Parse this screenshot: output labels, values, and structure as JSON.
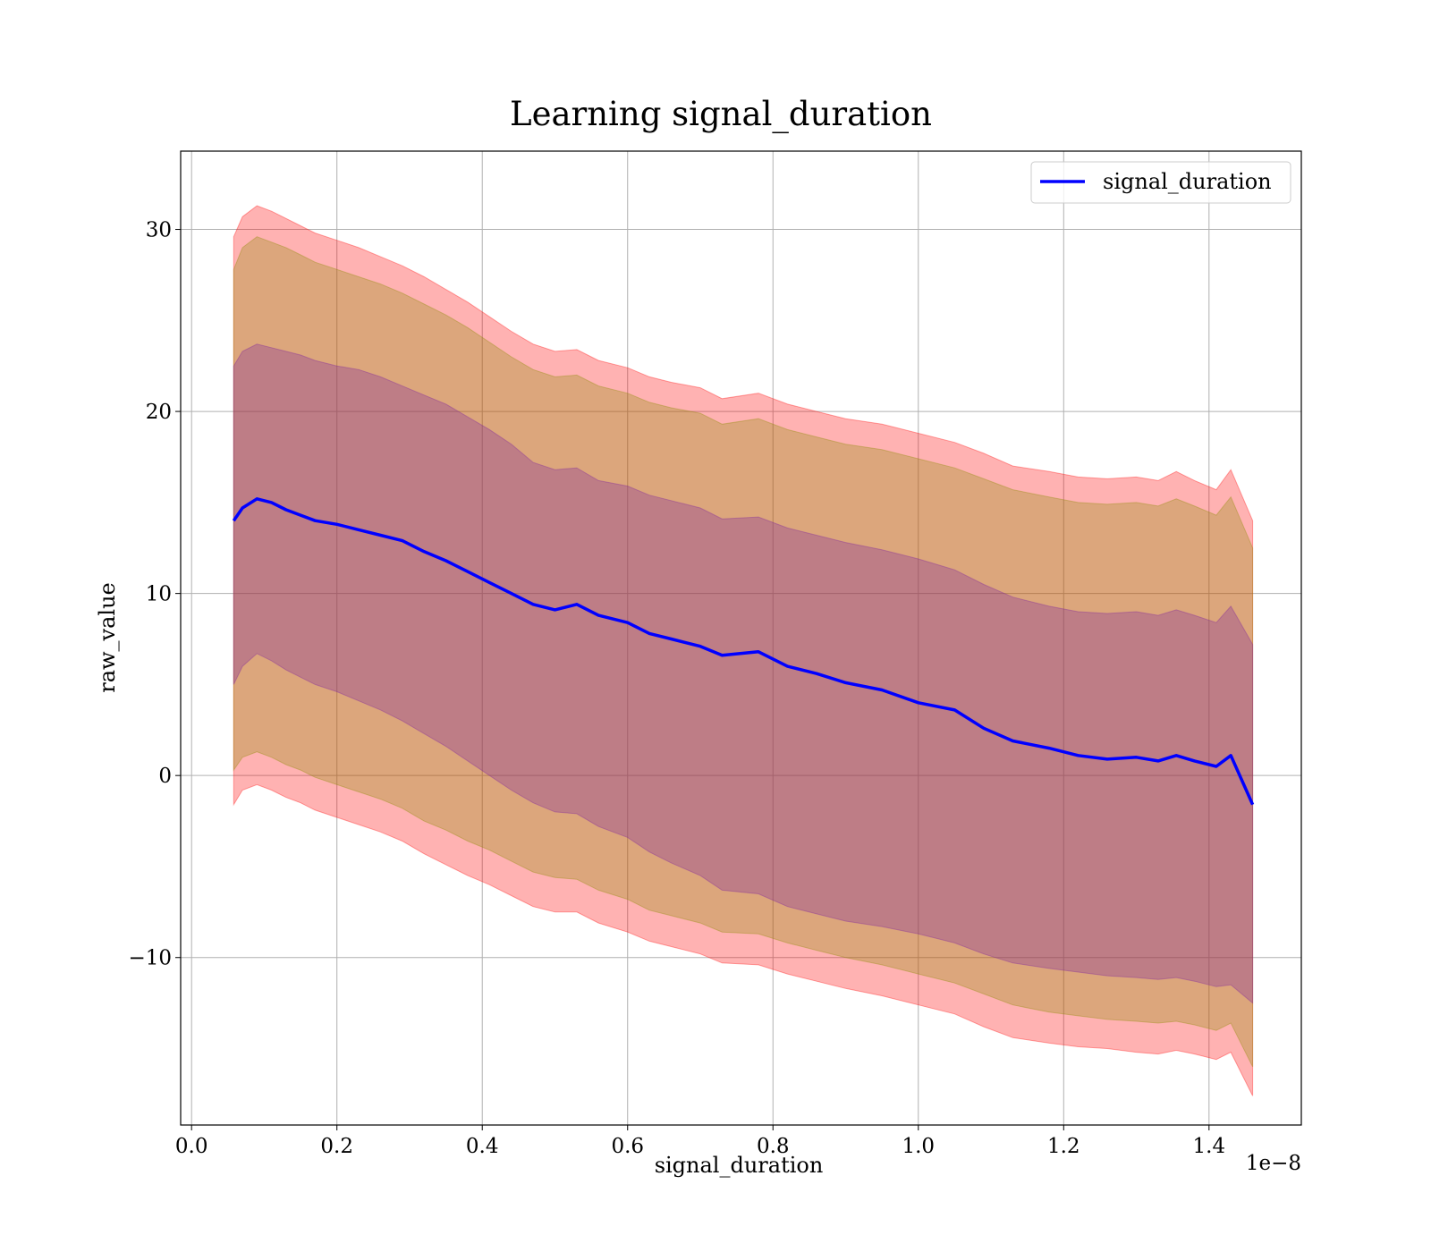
{
  "chart_data": {
    "type": "area",
    "title": "Learning signal_duration",
    "xlabel": "signal_duration",
    "ylabel": "raw_value",
    "x_offset_label": "1e−8",
    "xlim": [
      -1.5e-10,
      1.527e-08
    ],
    "ylim": [
      -19.2,
      34.3
    ],
    "xticks": [
      0,
      2e-09,
      4e-09,
      6e-09,
      8e-09,
      1e-08,
      1.2e-08,
      1.4e-08
    ],
    "xtick_labels": [
      "0.0",
      "0.2",
      "0.4",
      "0.6",
      "0.8",
      "1.0",
      "1.2",
      "1.4"
    ],
    "yticks": [
      -10,
      0,
      10,
      20,
      30
    ],
    "ytick_labels": [
      "−10",
      "0",
      "10",
      "20",
      "30"
    ],
    "grid": true,
    "legend": {
      "position": "upper-right",
      "entries": [
        {
          "label": "signal_duration",
          "color": "#0000ff"
        }
      ]
    },
    "colors": {
      "line": "#0000ff",
      "band_outer": "#ff0000",
      "band_middle": "#8b8b00",
      "band_inner": "#7a1fa0"
    },
    "x": [
      5.8e-10,
      7e-10,
      9e-10,
      1.1e-09,
      1.3e-09,
      1.5e-09,
      1.7e-09,
      2e-09,
      2.3e-09,
      2.6e-09,
      2.9e-09,
      3.2e-09,
      3.5e-09,
      3.8e-09,
      4.1e-09,
      4.4e-09,
      4.7e-09,
      5e-09,
      5.3e-09,
      5.6e-09,
      6e-09,
      6.3e-09,
      6.6e-09,
      7e-09,
      7.3e-09,
      7.8e-09,
      8.2e-09,
      8.6e-09,
      9e-09,
      9.5e-09,
      1e-08,
      1.05e-08,
      1.09e-08,
      1.13e-08,
      1.18e-08,
      1.22e-08,
      1.26e-08,
      1.3e-08,
      1.33e-08,
      1.355e-08,
      1.38e-08,
      1.41e-08,
      1.43e-08,
      1.46e-08
    ],
    "series": [
      {
        "name": "signal_duration",
        "mean": [
          14.0,
          14.7,
          15.2,
          15.0,
          14.6,
          14.3,
          14.0,
          13.8,
          13.5,
          13.2,
          12.9,
          12.3,
          11.8,
          11.2,
          10.6,
          10.0,
          9.4,
          9.1,
          9.4,
          8.8,
          8.4,
          7.8,
          7.5,
          7.1,
          6.6,
          6.8,
          6.0,
          5.6,
          5.1,
          4.7,
          4.0,
          3.6,
          2.6,
          1.9,
          1.5,
          1.1,
          0.9,
          1.0,
          0.8,
          1.1,
          0.8,
          0.5,
          1.1,
          -1.6
        ],
        "inner_lo": [
          5.0,
          6.0,
          6.7,
          6.3,
          5.8,
          5.4,
          5.0,
          4.6,
          4.1,
          3.6,
          3.0,
          2.3,
          1.6,
          0.8,
          0.0,
          -0.8,
          -1.5,
          -2.0,
          -2.1,
          -2.8,
          -3.4,
          -4.2,
          -4.8,
          -5.5,
          -6.3,
          -6.5,
          -7.2,
          -7.6,
          -8.0,
          -8.3,
          -8.7,
          -9.2,
          -9.8,
          -10.3,
          -10.6,
          -10.8,
          -11.0,
          -11.1,
          -11.2,
          -11.1,
          -11.3,
          -11.6,
          -11.5,
          -12.5
        ],
        "inner_hi": [
          22.5,
          23.3,
          23.7,
          23.5,
          23.3,
          23.1,
          22.8,
          22.5,
          22.3,
          21.9,
          21.4,
          20.9,
          20.4,
          19.7,
          19.0,
          18.2,
          17.2,
          16.8,
          16.9,
          16.2,
          15.9,
          15.4,
          15.1,
          14.7,
          14.1,
          14.2,
          13.6,
          13.2,
          12.8,
          12.4,
          11.9,
          11.3,
          10.5,
          9.8,
          9.3,
          9.0,
          8.9,
          9.0,
          8.8,
          9.1,
          8.8,
          8.4,
          9.3,
          7.2
        ],
        "middle_lo": [
          0.3,
          1.0,
          1.3,
          1.0,
          0.6,
          0.3,
          -0.1,
          -0.5,
          -0.9,
          -1.3,
          -1.8,
          -2.5,
          -3.0,
          -3.6,
          -4.1,
          -4.7,
          -5.3,
          -5.6,
          -5.7,
          -6.3,
          -6.8,
          -7.4,
          -7.7,
          -8.1,
          -8.6,
          -8.7,
          -9.2,
          -9.6,
          -10.0,
          -10.4,
          -10.9,
          -11.4,
          -12.0,
          -12.6,
          -13.0,
          -13.2,
          -13.4,
          -13.5,
          -13.6,
          -13.5,
          -13.7,
          -14.0,
          -13.6,
          -16.0
        ],
        "middle_hi": [
          27.8,
          29.0,
          29.6,
          29.3,
          29.0,
          28.6,
          28.2,
          27.8,
          27.4,
          27.0,
          26.5,
          25.9,
          25.3,
          24.6,
          23.8,
          23.0,
          22.3,
          21.9,
          22.0,
          21.4,
          21.0,
          20.5,
          20.2,
          19.9,
          19.3,
          19.6,
          19.0,
          18.6,
          18.2,
          17.9,
          17.4,
          16.9,
          16.3,
          15.7,
          15.3,
          15.0,
          14.9,
          15.0,
          14.8,
          15.2,
          14.8,
          14.3,
          15.3,
          12.5
        ],
        "outer_lo": [
          -1.6,
          -0.8,
          -0.5,
          -0.8,
          -1.2,
          -1.5,
          -1.9,
          -2.3,
          -2.7,
          -3.1,
          -3.6,
          -4.3,
          -4.9,
          -5.5,
          -6.0,
          -6.6,
          -7.2,
          -7.5,
          -7.5,
          -8.1,
          -8.6,
          -9.1,
          -9.4,
          -9.8,
          -10.3,
          -10.4,
          -10.9,
          -11.3,
          -11.7,
          -12.1,
          -12.6,
          -13.1,
          -13.8,
          -14.4,
          -14.7,
          -14.9,
          -15.0,
          -15.2,
          -15.3,
          -15.1,
          -15.3,
          -15.6,
          -15.2,
          -17.6
        ],
        "outer_hi": [
          29.6,
          30.7,
          31.3,
          31.0,
          30.6,
          30.2,
          29.8,
          29.4,
          29.0,
          28.5,
          28.0,
          27.4,
          26.7,
          26.0,
          25.2,
          24.4,
          23.7,
          23.3,
          23.4,
          22.8,
          22.4,
          21.9,
          21.6,
          21.3,
          20.7,
          21.0,
          20.4,
          20.0,
          19.6,
          19.3,
          18.8,
          18.3,
          17.7,
          17.0,
          16.7,
          16.4,
          16.3,
          16.4,
          16.2,
          16.7,
          16.2,
          15.7,
          16.8,
          14.0
        ]
      }
    ]
  }
}
